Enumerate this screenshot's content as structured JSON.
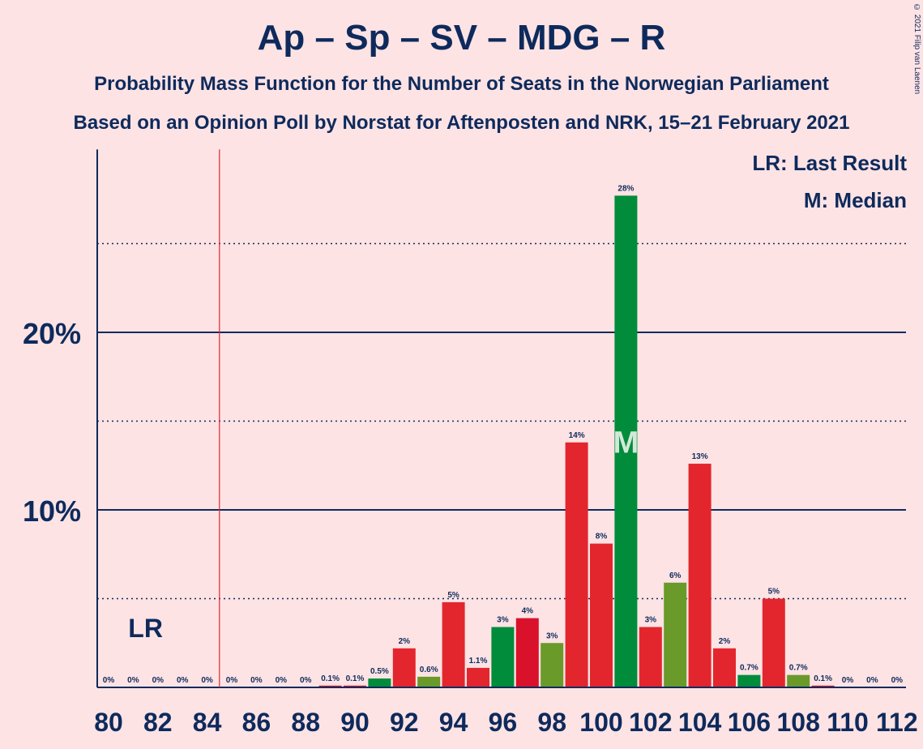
{
  "title": "Ap – Sp – SV – MDG – R",
  "subtitle1": "Probability Mass Function for the Number of Seats in the Norwegian Parliament",
  "subtitle2": "Based on an Opinion Poll by Norstat for Aftenposten and NRK, 15–21 February 2021",
  "copyright": "© 2021 Filip van Laenen",
  "legend": {
    "last_result": "LR: Last Result",
    "median": "M: Median"
  },
  "colors": {
    "background": "#FDE3E4",
    "axis": "#0E2A5C",
    "last_result_line": "#E3262D",
    "bar_palette": [
      "#E3262D",
      "#008C3A",
      "#D9112B",
      "#6A9A2A"
    ]
  },
  "chart_data": {
    "type": "bar",
    "x": [
      80,
      81,
      82,
      83,
      84,
      85,
      86,
      87,
      88,
      89,
      90,
      91,
      92,
      93,
      94,
      95,
      96,
      97,
      98,
      99,
      100,
      101,
      102,
      103,
      104,
      105,
      106,
      107,
      108,
      109,
      110,
      111,
      112
    ],
    "values": [
      0,
      0,
      0,
      0,
      0,
      0,
      0,
      0,
      0,
      0.1,
      0.1,
      0.5,
      2.2,
      0.6,
      4.8,
      1.1,
      3.4,
      3.9,
      2.5,
      13.8,
      8.1,
      27.7,
      3.4,
      5.9,
      12.6,
      2.2,
      0.7,
      5.0,
      0.7,
      0.1,
      0,
      0,
      0
    ],
    "data_labels": [
      "0%",
      "0%",
      "0%",
      "0%",
      "0%",
      "0%",
      "0%",
      "0%",
      "0%",
      "0.1%",
      "0.1%",
      "0.5%",
      "2%",
      "0.6%",
      "5%",
      "1.1%",
      "3%",
      "4%",
      "3%",
      "14%",
      "8%",
      "28%",
      "3%",
      "6%",
      "13%",
      "2%",
      "0.7%",
      "5%",
      "0.7%",
      "0.1%",
      "0%",
      "0%",
      "0%"
    ],
    "bar_colors": [
      "#E3262D",
      "#008C3A",
      "#D9112B",
      "#6A9A2A",
      "#E3262D",
      "#008C3A",
      "#D9112B",
      "#6A9A2A",
      "#E3262D",
      "#D9112B",
      "#D9112B",
      "#008C3A",
      "#E3262D",
      "#6A9A2A",
      "#E3262D",
      "#E3262D",
      "#008C3A",
      "#D9112B",
      "#6A9A2A",
      "#E3262D",
      "#E3262D",
      "#008C3A",
      "#E3262D",
      "#6A9A2A",
      "#E3262D",
      "#E3262D",
      "#008C3A",
      "#E3262D",
      "#6A9A2A",
      "#D9112B",
      "#E3262D",
      "#E3262D",
      "#E3262D"
    ],
    "x_tick_labels": [
      "80",
      "82",
      "84",
      "86",
      "88",
      "90",
      "92",
      "94",
      "96",
      "98",
      "100",
      "102",
      "104",
      "106",
      "108",
      "110",
      "112"
    ],
    "x_tick_values": [
      80,
      82,
      84,
      86,
      88,
      90,
      92,
      94,
      96,
      98,
      100,
      102,
      104,
      106,
      108,
      110,
      112
    ],
    "y_tick_labels": [
      "10%",
      "20%"
    ],
    "y_tick_values": [
      10,
      20
    ],
    "y_dotted_values": [
      5,
      15,
      25
    ],
    "ylim": [
      0,
      30.3
    ],
    "last_result": 85,
    "last_result_label": "LR",
    "last_result_label_x": 81.5,
    "median": 101,
    "median_label": "M"
  }
}
